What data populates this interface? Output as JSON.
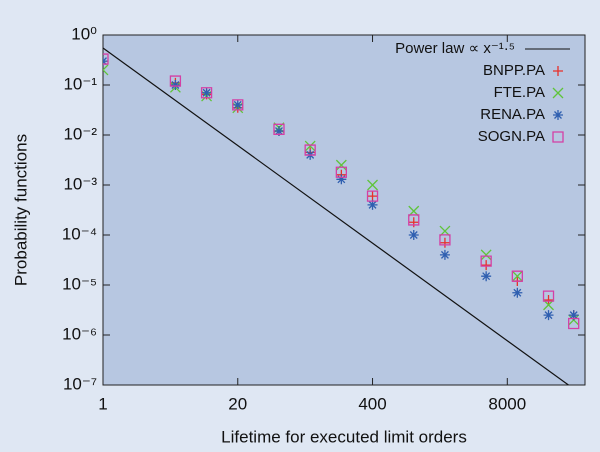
{
  "chart_data": {
    "type": "scatter",
    "xlabel": "Lifetime for executed limit orders",
    "ylabel": "Probability functions",
    "xscale": "log",
    "yscale": "log",
    "xlim": [
      1,
      45000
    ],
    "ylim": [
      1e-07,
      1
    ],
    "xticks": [
      1,
      20,
      400,
      8000
    ],
    "yticks": [
      {
        "value": 1,
        "label": "10⁰"
      },
      {
        "value": 0.1,
        "label": "10⁻¹"
      },
      {
        "value": 0.01,
        "label": "10⁻²"
      },
      {
        "value": 0.001,
        "label": "10⁻³"
      },
      {
        "value": 0.0001,
        "label": "10⁻⁴"
      },
      {
        "value": 1e-05,
        "label": "10⁻⁵"
      },
      {
        "value": 1e-06,
        "label": "10⁻⁶"
      },
      {
        "value": 1e-07,
        "label": "10⁻⁷"
      }
    ],
    "legend": "top-right",
    "x": [
      1,
      5,
      10,
      20,
      50,
      100,
      200,
      400,
      1000,
      2000,
      5000,
      10000,
      20000,
      35000
    ],
    "fit": {
      "name": "Power law ∝ x⁻¹·⁵",
      "color": "#111111",
      "x": [
        1,
        45000
      ],
      "values": [
        0.55,
        5.76e-08
      ]
    },
    "series": [
      {
        "name": "BNPP.PA",
        "color": "#e8302a",
        "marker": "plus",
        "values": [
          0.3,
          0.11,
          0.065,
          0.035,
          0.012,
          0.0045,
          0.0016,
          0.0006,
          0.00018,
          7e-05,
          2.5e-05,
          1.2e-05,
          5e-06,
          2.5e-06
        ]
      },
      {
        "name": "FTE.PA",
        "color": "#5fc43a",
        "marker": "cross",
        "values": [
          0.2,
          0.09,
          0.06,
          0.035,
          0.014,
          0.006,
          0.0025,
          0.001,
          0.0003,
          0.00012,
          4e-05,
          1.5e-05,
          4e-06,
          2e-06
        ]
      },
      {
        "name": "RENA.PA",
        "color": "#2f5fb0",
        "marker": "star",
        "values": [
          0.3,
          0.1,
          0.07,
          0.04,
          0.012,
          0.004,
          0.0013,
          0.0004,
          0.0001,
          4e-05,
          1.5e-05,
          7e-06,
          2.5e-06,
          2.5e-06
        ]
      },
      {
        "name": "SOGN.PA",
        "color": "#d43fa5",
        "marker": "square",
        "values": [
          0.33,
          0.12,
          0.07,
          0.04,
          0.013,
          0.005,
          0.0018,
          0.0006,
          0.0002,
          8e-05,
          3e-05,
          1.5e-05,
          6e-06,
          1.7e-06
        ]
      }
    ]
  }
}
